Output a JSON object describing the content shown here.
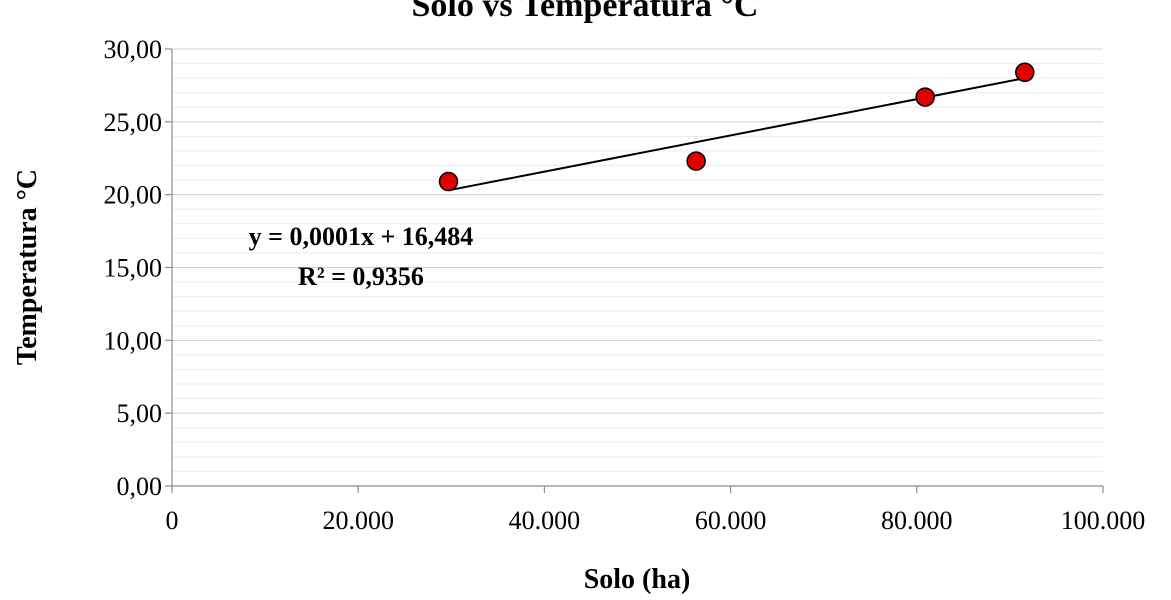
{
  "chart_data": {
    "type": "scatter",
    "title": "Solo vs Temperatura °C",
    "xlabel": "Solo (ha)",
    "ylabel": "Temperatura °C",
    "xlim": [
      0,
      100000
    ],
    "ylim": [
      0,
      30
    ],
    "x_ticks": [
      0,
      20000,
      40000,
      60000,
      80000,
      100000
    ],
    "x_tick_labels": [
      "0",
      "20.000",
      "40.000",
      "60.000",
      "80.000",
      "100.000"
    ],
    "y_ticks": [
      0,
      5,
      10,
      15,
      20,
      25,
      30
    ],
    "y_tick_labels": [
      "0,00",
      "5,00",
      "10,00",
      "15,00",
      "20,00",
      "25,00",
      "30,00"
    ],
    "grid": true,
    "legend": "none",
    "series": [
      {
        "x": [
          29700,
          56300,
          80900,
          91600
        ],
        "y": [
          20.9,
          22.3,
          26.7,
          28.4
        ],
        "color": "#e00000"
      }
    ],
    "trendline": {
      "x": [
        29700,
        91600
      ],
      "y": [
        20.3,
        28.0
      ],
      "color": "#000000"
    },
    "annotations": [
      {
        "text": "y = 0,0001x + 16,484"
      },
      {
        "text": "R² = 0,9356"
      }
    ]
  }
}
